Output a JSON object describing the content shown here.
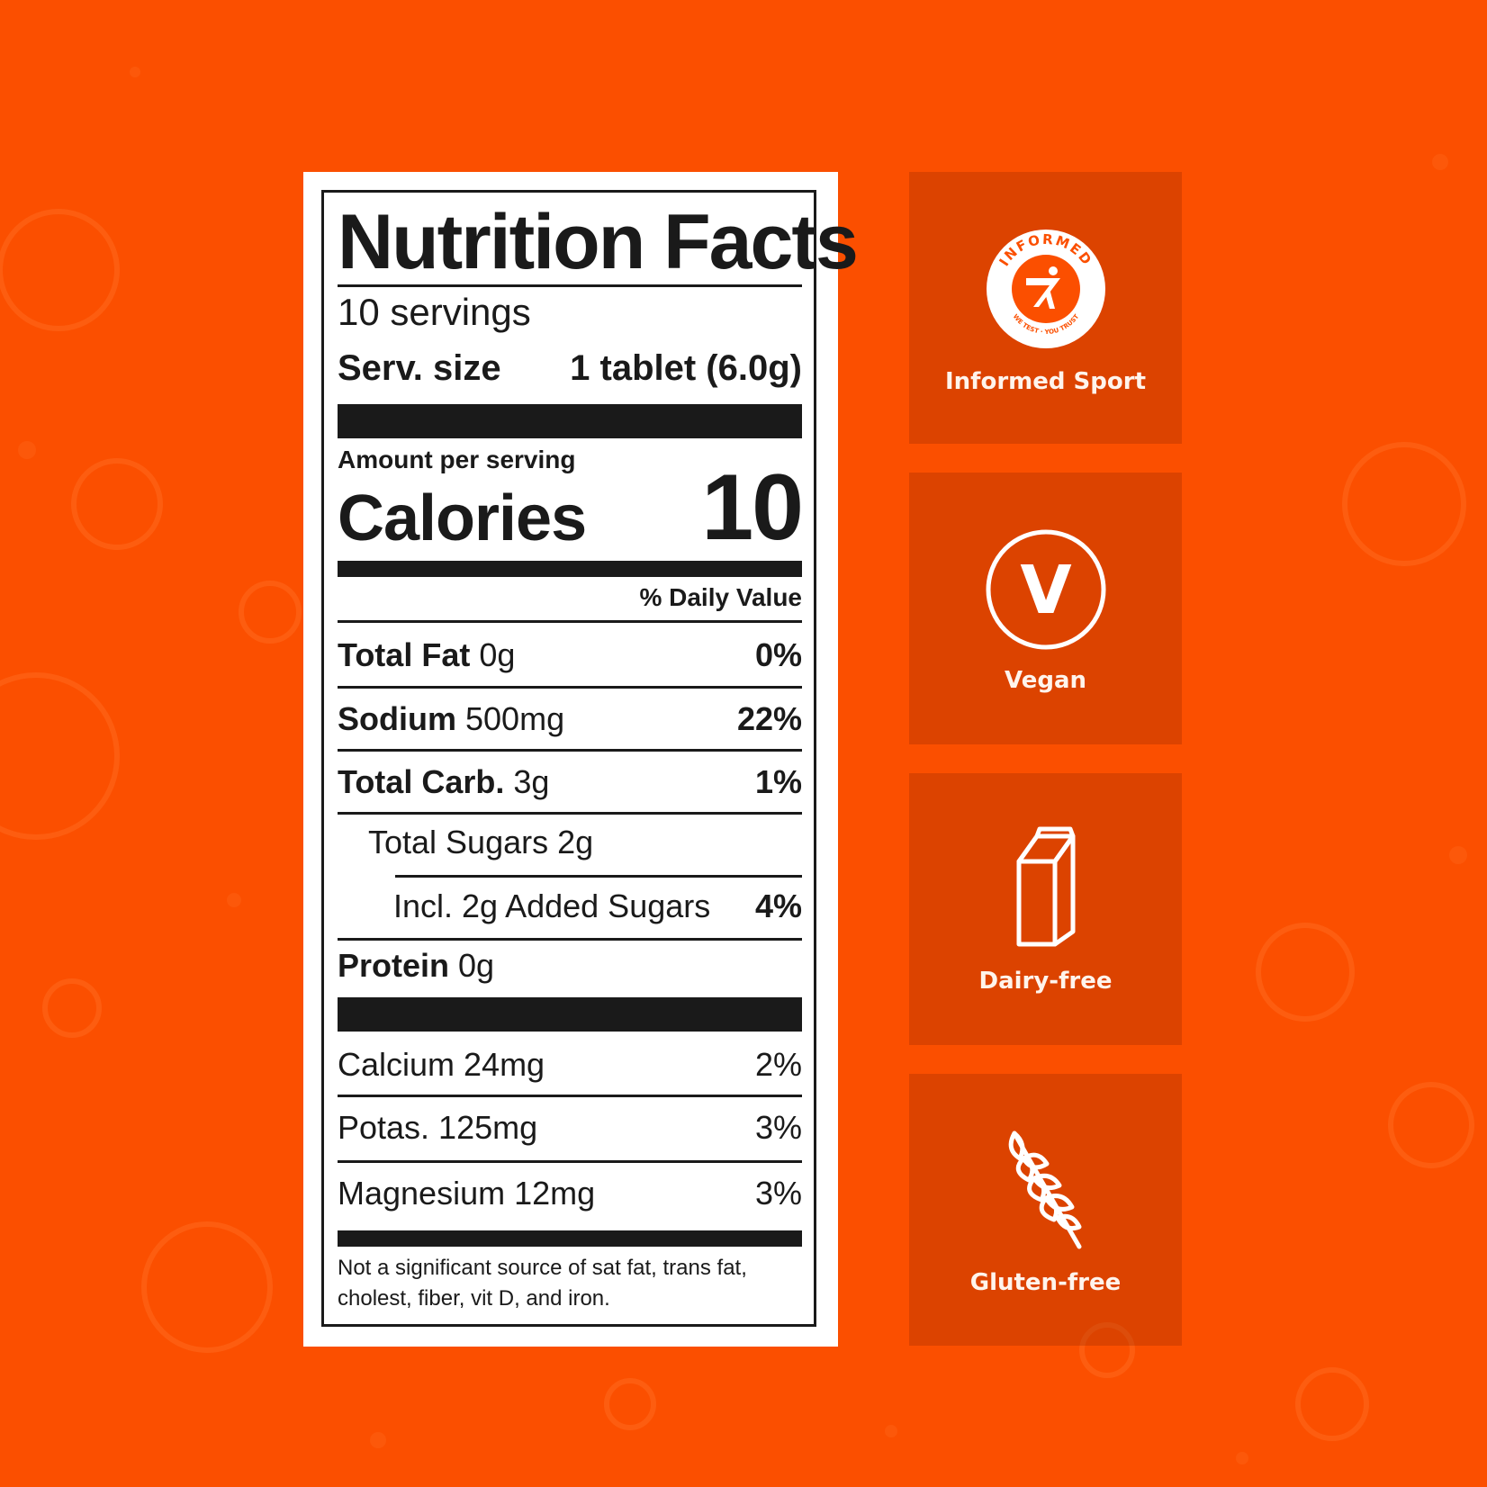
{
  "colors": {
    "background": "#fb4f00",
    "label_bg": "#ffffff",
    "ink": "#1a1a1a",
    "badge_text": "#fff4ec"
  },
  "nutrition": {
    "title": "Nutrition Facts",
    "servings": "10 servings",
    "serv_size_label": "Serv. size",
    "serv_size_value": "1 tablet (6.0g)",
    "amount_per_serving": "Amount per serving",
    "calories_label": "Calories",
    "calories_value": "10",
    "daily_value_header": "% Daily Value",
    "rows": [
      {
        "name": "Total Fat",
        "amount": "0g",
        "pct": "0%"
      },
      {
        "name": "Sodium",
        "amount": "500mg",
        "pct": "22%"
      },
      {
        "name": "Total Carb.",
        "amount": "3g",
        "pct": "1%"
      },
      {
        "name": "Total Sugars 2g",
        "amount": "",
        "pct": ""
      },
      {
        "name": "Incl. 2g Added Sugars",
        "amount": "",
        "pct": "4%"
      },
      {
        "name": "Protein",
        "amount": "0g",
        "pct": ""
      }
    ],
    "minerals": [
      {
        "name": "Calcium 24mg",
        "pct": "2%"
      },
      {
        "name": "Potas. 125mg",
        "pct": "3%"
      },
      {
        "name": "Magnesium 12mg",
        "pct": "3%"
      }
    ],
    "footnote": "Not a significant source of sat fat, trans fat, cholest, fiber, vit D, and iron."
  },
  "badges": [
    {
      "label": "Informed Sport",
      "icon": "informed-sport-icon",
      "ring_top": "INFORMED",
      "ring_bottom": "WE TEST · YOU TRUST"
    },
    {
      "label": "Vegan",
      "icon": "vegan-icon",
      "letter": "V"
    },
    {
      "label": "Dairy-free",
      "icon": "milk-carton-icon"
    },
    {
      "label": "Gluten-free",
      "icon": "wheat-icon"
    }
  ]
}
